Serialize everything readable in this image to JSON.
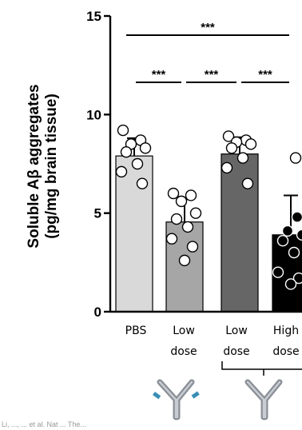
{
  "chart_data": {
    "type": "bar",
    "ylabel_line1": "Soluble Aβ aggregates",
    "ylabel_line2": "(pg/mg brain tissue)",
    "ylim": [
      0,
      15
    ],
    "yticks": [
      "0",
      "5",
      "10",
      "15"
    ],
    "categories": [
      {
        "line1": "PBS",
        "line2": ""
      },
      {
        "line1": "Low",
        "line2": "dose"
      },
      {
        "line1": "Low",
        "line2": "dose"
      },
      {
        "line1": "High",
        "line2": "dose"
      }
    ],
    "values": [
      7.9,
      4.55,
      8.0,
      3.9
    ],
    "errors": [
      0.9,
      1.15,
      0.85,
      2.0
    ],
    "bar_colors": [
      "#d9d9d9",
      "#a6a6a6",
      "#666666",
      "#000000"
    ],
    "points": [
      [
        9.2,
        8.7,
        8.5,
        8.3,
        8.1,
        7.5,
        7.1,
        6.5
      ],
      [
        6.0,
        5.9,
        5.6,
        5.0,
        4.7,
        4.3,
        3.7,
        3.3,
        2.6
      ],
      [
        8.9,
        8.7,
        8.6,
        8.5,
        8.3,
        7.8,
        7.3,
        6.5
      ],
      [
        7.8,
        4.8,
        4.1,
        3.9,
        3.6,
        3.0,
        2.0,
        1.7,
        1.4
      ]
    ],
    "significance": [
      {
        "from": 0,
        "to": 3,
        "label": "***"
      },
      {
        "from": 0,
        "to": 1,
        "label": "***"
      },
      {
        "from": 1,
        "to": 2,
        "label": "***"
      },
      {
        "from": 2,
        "to": 3,
        "label": "***"
      }
    ],
    "caption": "Li, ..., ... et al. Nat ... The..."
  }
}
